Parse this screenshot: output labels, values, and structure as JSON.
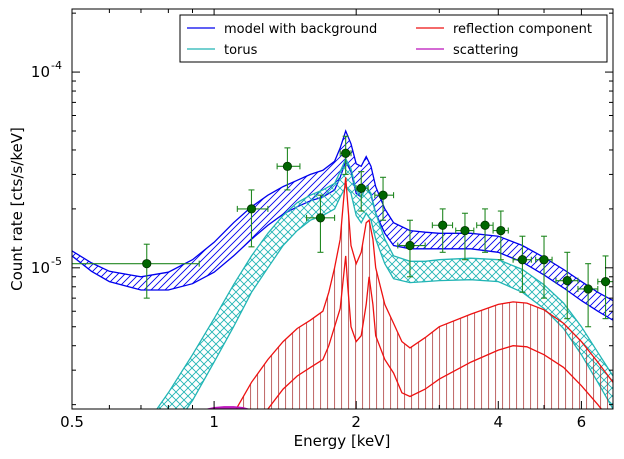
{
  "chart_data": {
    "type": "line",
    "xlabel": "Energy [keV]",
    "ylabel": "Count rate [cts/s/keV]",
    "xscale": "log",
    "yscale": "log",
    "xlim": [
      0.5,
      7.0
    ],
    "ylim": [
      1.9e-06,
      0.00021
    ],
    "x_ticks": [
      {
        "value": 0.5,
        "label": "0.5"
      },
      {
        "value": 1,
        "label": "1"
      },
      {
        "value": 2,
        "label": "2"
      },
      {
        "value": 4,
        "label": "4"
      },
      {
        "value": 6,
        "label": "6"
      }
    ],
    "y_ticks": [
      {
        "value": 1e-05,
        "base": "10",
        "exp": "-5"
      },
      {
        "value": 0.0001,
        "base": "10",
        "exp": "-4"
      }
    ],
    "legend": {
      "placement": "top-right",
      "entries": [
        {
          "label": "model with background",
          "color": "#0000ee"
        },
        {
          "label": "reflection component",
          "color": "#ee1111"
        },
        {
          "label": "torus",
          "color": "#22b5b5"
        },
        {
          "label": "scattering",
          "color": "#bb11bb"
        }
      ]
    },
    "series": [
      {
        "name": "model with background",
        "color": "#0000ee",
        "hatch": "diagonal",
        "x": [
          0.5,
          0.55,
          0.6,
          0.7,
          0.8,
          0.9,
          1.0,
          1.1,
          1.2,
          1.3,
          1.4,
          1.5,
          1.6,
          1.7,
          1.8,
          1.85,
          1.9,
          1.95,
          2.0,
          2.05,
          2.1,
          2.15,
          2.2,
          2.3,
          2.4,
          2.6,
          2.8,
          3.0,
          3.5,
          4.0,
          4.5,
          5.0,
          5.5,
          6.0,
          6.5,
          7.0
        ],
        "low": [
          1.15e-05,
          9.6e-06,
          8.5e-06,
          7.7e-06,
          7.7e-06,
          8.3e-06,
          9.5e-06,
          1.15e-05,
          1.4e-05,
          1.65e-05,
          1.88e-05,
          2.05e-05,
          2.2e-05,
          2.3e-05,
          2.5e-05,
          2.9e-05,
          3.5e-05,
          3.1e-05,
          2.4e-05,
          2.3e-05,
          2.6e-05,
          2.35e-05,
          1.9e-05,
          1.5e-05,
          1.3e-05,
          1.25e-05,
          1.25e-05,
          1.25e-05,
          1.25e-05,
          1.2e-05,
          1.07e-05,
          9.2e-06,
          7.9e-06,
          6.8e-06,
          6e-06,
          5.4e-06
        ],
        "high": [
          1.22e-05,
          1.06e-05,
          9.6e-06,
          9e-06,
          9.5e-06,
          1.1e-05,
          1.35e-05,
          1.7e-05,
          2.05e-05,
          2.35e-05,
          2.6e-05,
          2.8e-05,
          3e-05,
          3.15e-05,
          3.5e-05,
          4.1e-05,
          5e-05,
          4.3e-05,
          3.4e-05,
          3.3e-05,
          3.7e-05,
          3.3e-05,
          2.6e-05,
          2e-05,
          1.7e-05,
          1.55e-05,
          1.52e-05,
          1.5e-05,
          1.5e-05,
          1.45e-05,
          1.3e-05,
          1.13e-05,
          9.8e-06,
          8.5e-06,
          7.5e-06,
          6.8e-06
        ]
      },
      {
        "name": "torus",
        "color": "#22b5b5",
        "hatch": "crosshatch",
        "x": [
          0.72,
          0.8,
          0.9,
          1.0,
          1.1,
          1.2,
          1.3,
          1.4,
          1.5,
          1.6,
          1.7,
          1.8,
          1.85,
          1.9,
          1.95,
          2.0,
          2.05,
          2.1,
          2.15,
          2.2,
          2.3,
          2.4,
          2.6,
          2.8,
          3.0,
          3.5,
          4.0,
          4.5,
          5.0,
          5.5,
          6.0,
          6.5,
          7.0
        ],
        "low": [
          1e-06,
          1.4e-06,
          2.1e-06,
          3.3e-06,
          5e-06,
          7.5e-06,
          1e-05,
          1.3e-05,
          1.55e-05,
          1.75e-05,
          1.85e-05,
          2e-05,
          2.3e-05,
          2.6e-05,
          2.4e-05,
          1.85e-05,
          1.7e-05,
          1.9e-05,
          1.75e-05,
          1.4e-05,
          1.05e-05,
          8.8e-06,
          8.4e-06,
          8.5e-06,
          8.6e-06,
          8.7e-06,
          8.5e-06,
          7.5e-06,
          6.2e-06,
          4.9e-06,
          3.6e-06,
          2.6e-06,
          1.9e-06
        ],
        "high": [
          1.6e-06,
          2.3e-06,
          3.6e-06,
          5.5e-06,
          8.2e-06,
          1.15e-05,
          1.5e-05,
          1.85e-05,
          2.15e-05,
          2.35e-05,
          2.5e-05,
          2.7e-05,
          3.1e-05,
          3.6e-05,
          3.2e-05,
          2.5e-05,
          2.3e-05,
          2.6e-05,
          2.4e-05,
          1.9e-05,
          1.4e-05,
          1.15e-05,
          1.08e-05,
          1.08e-05,
          1.1e-05,
          1.12e-05,
          1.1e-05,
          9.8e-06,
          8.2e-06,
          6.6e-06,
          5e-06,
          3.7e-06,
          2.8e-06
        ]
      },
      {
        "name": "reflection component",
        "color": "#ee1111",
        "hatch": "vertical",
        "x": [
          1.1,
          1.2,
          1.3,
          1.4,
          1.5,
          1.6,
          1.7,
          1.75,
          1.8,
          1.85,
          1.88,
          1.9,
          1.92,
          1.95,
          2.0,
          2.05,
          2.1,
          2.13,
          2.17,
          2.2,
          2.3,
          2.4,
          2.5,
          2.6,
          2.8,
          3.0,
          3.5,
          4.0,
          4.3,
          4.6,
          5.0,
          5.5,
          6.0,
          6.5,
          7.0
        ],
        "low": [
          1e-06,
          1.4e-06,
          1.9e-06,
          2.4e-06,
          2.8e-06,
          3.1e-06,
          3.4e-06,
          4e-06,
          5e-06,
          6.2e-06,
          9e-06,
          1.15e-05,
          8e-06,
          5e-06,
          4.2e-06,
          4.5e-06,
          6.5e-06,
          9e-06,
          6.5e-06,
          4.5e-06,
          3.4e-06,
          2.9e-06,
          2.3e-06,
          2.2e-06,
          2.4e-06,
          2.7e-06,
          3.3e-06,
          3.8e-06,
          4e-06,
          3.95e-06,
          3.6e-06,
          3.1e-06,
          2.5e-06,
          2e-06,
          1.6e-06
        ],
        "high": [
          1.8e-06,
          2.6e-06,
          3.4e-06,
          4.2e-06,
          4.9e-06,
          5.4e-06,
          6e-06,
          7.5e-06,
          1e-05,
          1.4e-05,
          2.2e-05,
          2.9e-05,
          2.1e-05,
          1.3e-05,
          1.05e-05,
          1.2e-05,
          1.7e-05,
          1.75e-05,
          1.4e-05,
          1e-05,
          6.5e-06,
          5.2e-06,
          4.2e-06,
          3.9e-06,
          4.4e-06,
          5e-06,
          5.8e-06,
          6.5e-06,
          6.7e-06,
          6.6e-06,
          6.1e-06,
          5.2e-06,
          4.2e-06,
          3.3e-06,
          2.6e-06
        ]
      },
      {
        "name": "scattering",
        "color": "#bb11bb",
        "hatch": "none",
        "x": [
          0.95,
          1.0,
          1.05,
          1.1,
          1.15,
          1.2,
          1.25
        ],
        "low": [
          1.8e-06,
          1.85e-06,
          1.87e-06,
          1.87e-06,
          1.85e-06,
          1.8e-06,
          1.75e-06
        ],
        "high": [
          1.88e-06,
          1.93e-06,
          1.95e-06,
          1.95e-06,
          1.93e-06,
          1.88e-06,
          1.83e-06
        ]
      }
    ],
    "points": {
      "name": "data",
      "color": "#006600",
      "errcolor": "#228822",
      "items": [
        {
          "x": 0.72,
          "y": 1.05e-05,
          "xerr": [
            0.5,
            0.93
          ],
          "yerr": [
            7e-06,
            1.32e-05
          ]
        },
        {
          "x": 1.2,
          "y": 2e-05,
          "xerr": [
            1.12,
            1.3
          ],
          "yerr": [
            1.28e-05,
            2.5e-05
          ]
        },
        {
          "x": 1.43,
          "y": 3.3e-05,
          "xerr": [
            1.36,
            1.52
          ],
          "yerr": [
            2.5e-05,
            4.1e-05
          ]
        },
        {
          "x": 1.68,
          "y": 1.8e-05,
          "xerr": [
            1.57,
            1.8
          ],
          "yerr": [
            1.2e-05,
            2.35e-05
          ]
        },
        {
          "x": 1.9,
          "y": 3.85e-05,
          "xerr": [
            1.85,
            1.95
          ],
          "yerr": [
            3e-05,
            4.7e-05
          ]
        },
        {
          "x": 2.05,
          "y": 2.55e-05,
          "xerr": [
            2.0,
            2.12
          ],
          "yerr": [
            1.95e-05,
            3.1e-05
          ]
        },
        {
          "x": 2.28,
          "y": 2.35e-05,
          "xerr": [
            2.19,
            2.4
          ],
          "yerr": [
            1.75e-05,
            2.9e-05
          ]
        },
        {
          "x": 2.6,
          "y": 1.3e-05,
          "xerr": [
            2.45,
            2.8
          ],
          "yerr": [
            9e-06,
            1.75e-05
          ]
        },
        {
          "x": 3.05,
          "y": 1.65e-05,
          "xerr": [
            2.9,
            3.2
          ],
          "yerr": [
            1.2e-05,
            2e-05
          ]
        },
        {
          "x": 3.4,
          "y": 1.55e-05,
          "xerr": [
            3.25,
            3.55
          ],
          "yerr": [
            1.1e-05,
            1.9e-05
          ]
        },
        {
          "x": 3.75,
          "y": 1.65e-05,
          "xerr": [
            3.6,
            3.9
          ],
          "yerr": [
            1.2e-05,
            2e-05
          ]
        },
        {
          "x": 4.05,
          "y": 1.55e-05,
          "xerr": [
            3.9,
            4.2
          ],
          "yerr": [
            1.1e-05,
            1.95e-05
          ]
        },
        {
          "x": 4.5,
          "y": 1.1e-05,
          "xerr": [
            4.3,
            4.7
          ],
          "yerr": [
            7.5e-06,
            1.45e-05
          ]
        },
        {
          "x": 5.0,
          "y": 1.1e-05,
          "xerr": [
            4.8,
            5.2
          ],
          "yerr": [
            7e-06,
            1.45e-05
          ]
        },
        {
          "x": 5.6,
          "y": 8.6e-06,
          "xerr": [
            5.3,
            5.9
          ],
          "yerr": [
            5.5e-06,
            1.2e-05
          ]
        },
        {
          "x": 6.2,
          "y": 7.8e-06,
          "xerr": [
            5.9,
            6.5
          ],
          "yerr": [
            5e-06,
            1.05e-05
          ]
        },
        {
          "x": 6.75,
          "y": 8.5e-06,
          "xerr": [
            6.5,
            7.0
          ],
          "yerr": [
            5.5e-06,
            1.15e-05
          ]
        }
      ]
    }
  }
}
